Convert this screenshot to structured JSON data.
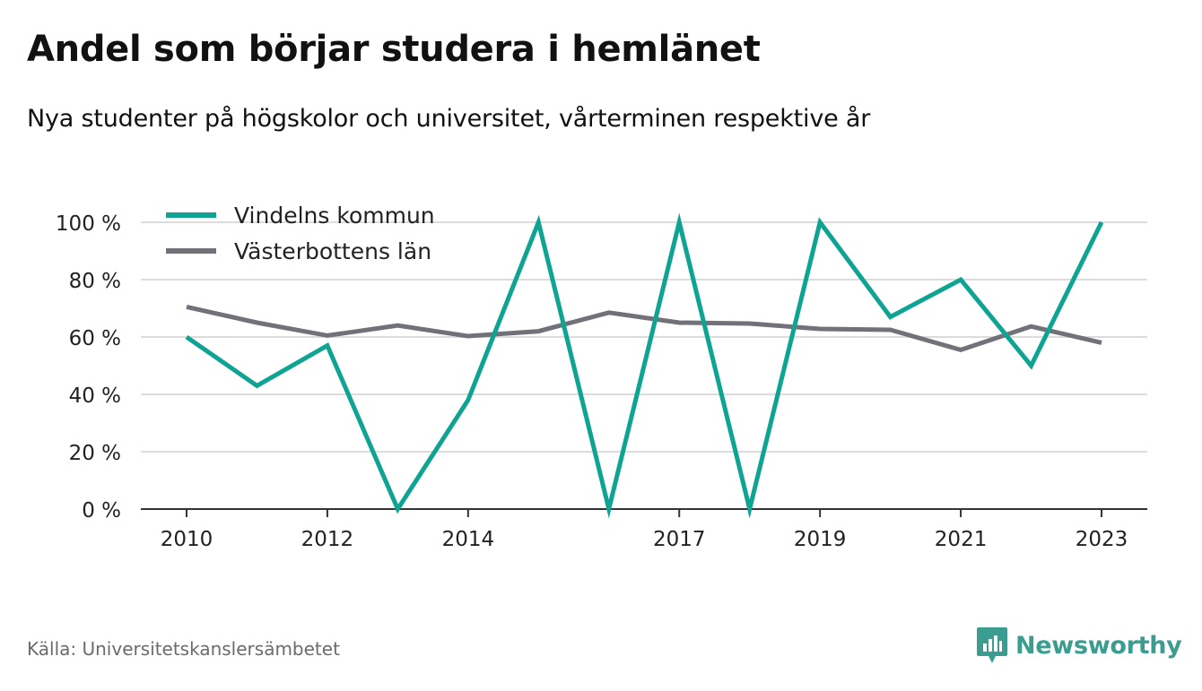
{
  "title": "Andel som börjar studera i hemlänet",
  "subtitle": "Nya studenter på högskolor och universitet, vårterminen respektive år",
  "source": "Källa: Universitetskanslersämbetet",
  "brand": {
    "name": "Newsworthy",
    "color": "#3a9d8f",
    "icon": "newsworthy-logo-icon"
  },
  "chart_data": {
    "type": "line",
    "x": [
      2010,
      2011,
      2012,
      2013,
      2014,
      2015,
      2016,
      2017,
      2018,
      2019,
      2020,
      2021,
      2022,
      2023
    ],
    "x_tick_labels": [
      "2010",
      "2012",
      "2014",
      "2017",
      "2019",
      "2021",
      "2023"
    ],
    "x_tick_values": [
      2010,
      2012,
      2014,
      2017,
      2019,
      2021,
      2023
    ],
    "y_tick_labels": [
      "0 %",
      "20 %",
      "40 %",
      "60 %",
      "80 %",
      "100 %"
    ],
    "y_tick_values": [
      0,
      20,
      40,
      60,
      80,
      100
    ],
    "ylim": [
      0,
      100
    ],
    "grid": "horizontal",
    "legend_position": "top-left",
    "series": [
      {
        "name": "Vindelns kommun",
        "color": "#0fa393",
        "values": [
          60,
          43,
          57,
          0,
          38,
          100,
          0,
          100,
          0,
          100,
          67,
          80,
          50,
          100
        ]
      },
      {
        "name": "Västerbottens län",
        "color": "#727078",
        "values": [
          70.5,
          65,
          60.5,
          64,
          60.3,
          62,
          68.5,
          65,
          64.7,
          62.8,
          62.5,
          55.5,
          63.7,
          58
        ]
      }
    ]
  }
}
